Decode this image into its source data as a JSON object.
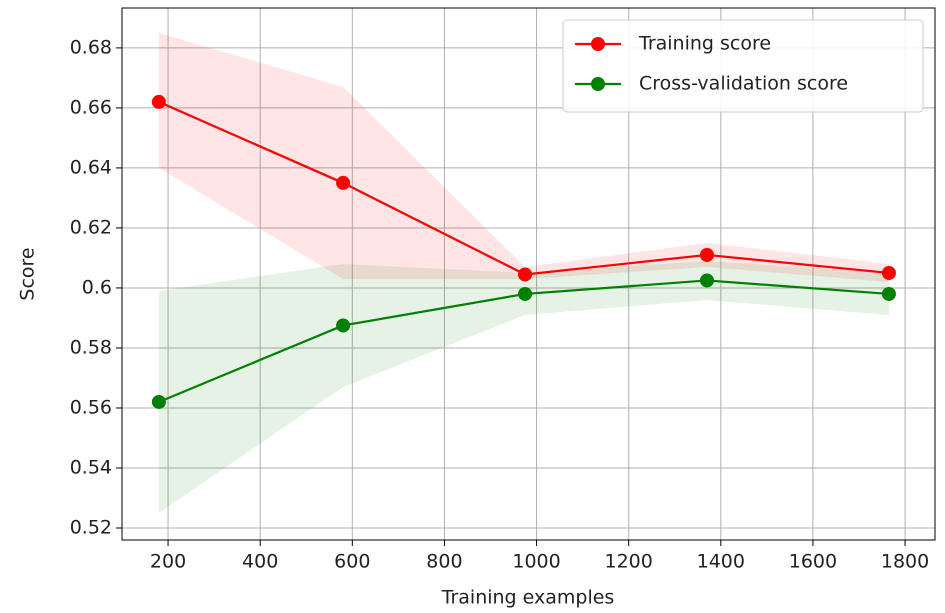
{
  "chart_data": {
    "type": "line",
    "x_label": "Training examples",
    "y_label": "Score",
    "x": [
      180,
      580,
      975,
      1370,
      1765
    ],
    "series": [
      {
        "name": "Training score",
        "color": "#ff0000",
        "band_color": "#ff0000",
        "values": [
          0.662,
          0.635,
          0.6045,
          0.611,
          0.605
        ],
        "lower": [
          0.64,
          0.603,
          0.603,
          0.607,
          0.602
        ],
        "upper": [
          0.685,
          0.667,
          0.607,
          0.615,
          0.608
        ]
      },
      {
        "name": "Cross-validation score",
        "color": "#008000",
        "band_color": "#008000",
        "values": [
          0.562,
          0.5875,
          0.598,
          0.6025,
          0.598
        ],
        "lower": [
          0.525,
          0.567,
          0.591,
          0.596,
          0.591
        ],
        "upper": [
          0.599,
          0.608,
          0.605,
          0.609,
          0.605
        ]
      }
    ],
    "xlim": [
      100,
      1865
    ],
    "ylim": [
      0.516,
      0.6933
    ],
    "xticks": [
      200,
      400,
      600,
      800,
      1000,
      1200,
      1400,
      1600,
      1800
    ],
    "yticks": [
      0.52,
      0.54,
      0.56,
      0.58,
      0.6,
      0.62,
      0.64,
      0.66,
      0.68
    ],
    "grid": true,
    "legend": "upper right"
  }
}
